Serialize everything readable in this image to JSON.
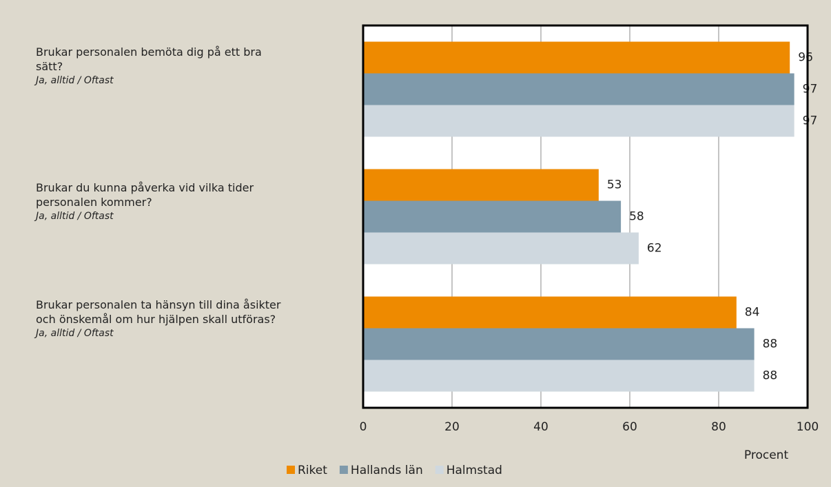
{
  "chart_data": {
    "type": "barh",
    "categories": [
      "Brukar personalen bemöta dig på ett bra sätt?",
      "Brukar du kunna påverka vid vilka tider personalen kommer?",
      "Brukar personalen ta hänsyn till dina åsikter och önskemål om hur hjälpen skall utföras?"
    ],
    "category_subtitles": [
      "Ja, alltid / Oftast",
      "Ja, alltid / Oftast",
      "Ja, alltid / Oftast"
    ],
    "series": [
      {
        "name": "Riket",
        "color": "#ee8a00",
        "values": [
          96,
          53,
          84
        ]
      },
      {
        "name": "Hallands län",
        "color": "#7f9aab",
        "values": [
          97,
          58,
          88
        ]
      },
      {
        "name": "Halmstad",
        "color": "#cfd8df",
        "values": [
          97,
          62,
          88
        ]
      }
    ],
    "xlabel": "Procent",
    "xlim": [
      0,
      100
    ],
    "xticks": [
      0,
      20,
      40,
      60,
      80,
      100
    ],
    "grid": true,
    "legend": "bottom"
  }
}
